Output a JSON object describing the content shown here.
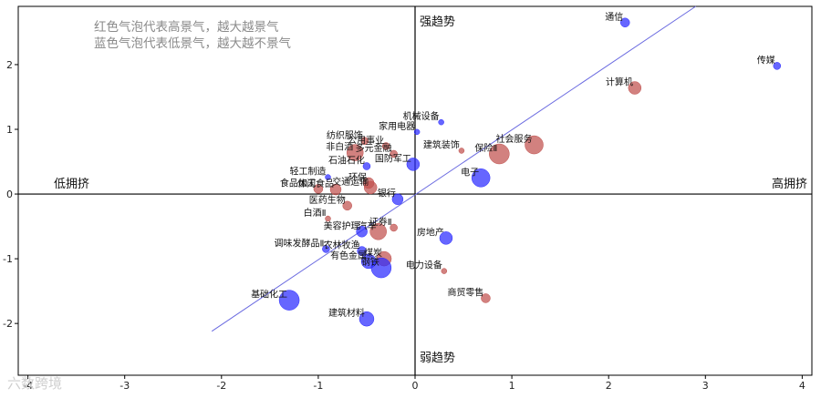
{
  "notes": {
    "line1": "红色气泡代表高景气，越大越景气",
    "line2": "蓝色气泡代表低景气，越大越不景气"
  },
  "quadrant_labels": {
    "top": "强趋势",
    "bottom": "弱趋势",
    "left": "低拥挤",
    "right": "高拥挤"
  },
  "watermark": "六数跨境",
  "colors": {
    "high": "#c0504d",
    "low": "#2b2bff",
    "trend_line": "#6a6ae0",
    "axis": "#000000"
  },
  "chart_data": {
    "type": "scatter",
    "title": "",
    "xlabel": "",
    "ylabel": "",
    "xlim": [
      -4.1,
      4.1
    ],
    "ylim": [
      -2.8,
      2.9
    ],
    "xticks": [
      -4,
      -3,
      -2,
      -1,
      0,
      1,
      2,
      3,
      4
    ],
    "yticks": [
      -2,
      -1,
      0,
      1,
      2
    ],
    "grid": false,
    "trend_line": [
      [
        -2.1,
        -2.12
      ],
      [
        2.9,
        2.9
      ]
    ],
    "points": [
      {
        "label": "通信",
        "x": 2.17,
        "y": 2.65,
        "size": 5,
        "color": "low"
      },
      {
        "label": "传媒",
        "x": 3.74,
        "y": 1.98,
        "size": 4,
        "color": "low"
      },
      {
        "label": "计算机",
        "x": 2.27,
        "y": 1.64,
        "size": 7,
        "color": "high"
      },
      {
        "label": "机械设备",
        "x": 0.27,
        "y": 1.11,
        "size": 3,
        "color": "low"
      },
      {
        "label": "家用电器",
        "x": 0.02,
        "y": 0.96,
        "size": 3,
        "color": "low"
      },
      {
        "label": "社会服务",
        "x": 1.23,
        "y": 0.76,
        "size": 10,
        "color": "high"
      },
      {
        "label": "保险Ⅱ",
        "x": 0.87,
        "y": 0.62,
        "size": 11,
        "color": "high"
      },
      {
        "label": "建筑装饰",
        "x": 0.48,
        "y": 0.67,
        "size": 3,
        "color": "high"
      },
      {
        "label": "纺织服饰",
        "x": -0.52,
        "y": 0.82,
        "size": 4,
        "color": "high"
      },
      {
        "label": "公用事业",
        "x": -0.3,
        "y": 0.74,
        "size": 4,
        "color": "high"
      },
      {
        "label": "非白酒",
        "x": -0.62,
        "y": 0.64,
        "size": 9,
        "color": "high"
      },
      {
        "label": "多元金融",
        "x": -0.22,
        "y": 0.62,
        "size": 4,
        "color": "high"
      },
      {
        "label": "石油石化",
        "x": -0.5,
        "y": 0.43,
        "size": 4,
        "color": "low"
      },
      {
        "label": "国防军工",
        "x": -0.02,
        "y": 0.46,
        "size": 7,
        "color": "low"
      },
      {
        "label": "电子",
        "x": 0.68,
        "y": 0.25,
        "size": 10,
        "color": "low"
      },
      {
        "label": "轻工制造",
        "x": -0.9,
        "y": 0.26,
        "size": 3,
        "color": "low"
      },
      {
        "label": "环保",
        "x": -0.48,
        "y": 0.17,
        "size": 6,
        "color": "high"
      },
      {
        "label": "食品加工",
        "x": -1.0,
        "y": 0.08,
        "size": 5,
        "color": "high"
      },
      {
        "label": "休闲食品",
        "x": -0.82,
        "y": 0.07,
        "size": 6,
        "color": "high"
      },
      {
        "label": "交通运输",
        "x": -0.46,
        "y": 0.1,
        "size": 7,
        "color": "high"
      },
      {
        "label": "银行",
        "x": -0.18,
        "y": -0.08,
        "size": 6,
        "color": "low"
      },
      {
        "label": "医药生物",
        "x": -0.7,
        "y": -0.18,
        "size": 5,
        "color": "high"
      },
      {
        "label": "白酒Ⅱ",
        "x": -0.9,
        "y": -0.38,
        "size": 3,
        "color": "high"
      },
      {
        "label": "证券Ⅱ",
        "x": -0.22,
        "y": -0.52,
        "size": 4,
        "color": "high"
      },
      {
        "label": "美容护理",
        "x": -0.55,
        "y": -0.58,
        "size": 6,
        "color": "low"
      },
      {
        "label": "汽车",
        "x": -0.38,
        "y": -0.58,
        "size": 9,
        "color": "high"
      },
      {
        "label": "房地产",
        "x": 0.32,
        "y": -0.68,
        "size": 7,
        "color": "low"
      },
      {
        "label": "调味发酵品Ⅱ",
        "x": -0.92,
        "y": -0.85,
        "size": 4,
        "color": "low"
      },
      {
        "label": "农林牧渔",
        "x": -0.55,
        "y": -0.88,
        "size": 5,
        "color": "low"
      },
      {
        "label": "有色金属",
        "x": -0.48,
        "y": -1.04,
        "size": 8,
        "color": "low"
      },
      {
        "label": "煤炭",
        "x": -0.32,
        "y": -1.0,
        "size": 8,
        "color": "high"
      },
      {
        "label": "钢铁",
        "x": -0.35,
        "y": -1.14,
        "size": 11,
        "color": "low"
      },
      {
        "label": "电力设备",
        "x": 0.3,
        "y": -1.19,
        "size": 3,
        "color": "high"
      },
      {
        "label": "商贸零售",
        "x": 0.73,
        "y": -1.61,
        "size": 5,
        "color": "high"
      },
      {
        "label": "基础化工",
        "x": -1.3,
        "y": -1.64,
        "size": 11,
        "color": "low"
      },
      {
        "label": "建筑材料",
        "x": -0.5,
        "y": -1.93,
        "size": 8,
        "color": "low"
      }
    ]
  }
}
